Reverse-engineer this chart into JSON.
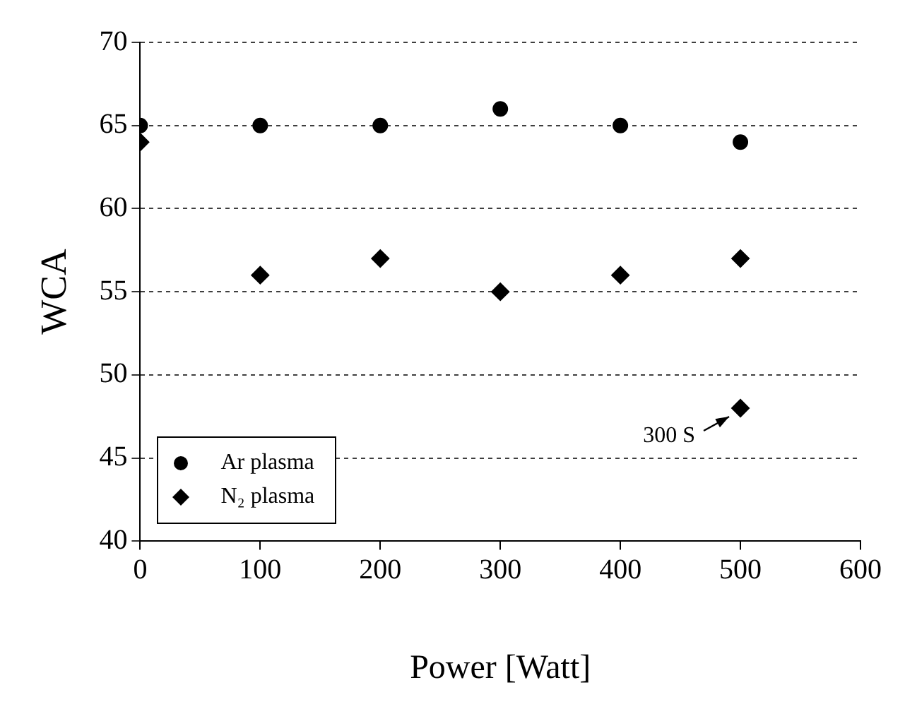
{
  "chart_data": {
    "type": "scatter",
    "xlabel": "Power [Watt]",
    "ylabel": "WCA",
    "xlim": [
      0,
      600
    ],
    "xticks": [
      0,
      100,
      200,
      300,
      400,
      500,
      600
    ],
    "ylim": [
      40,
      70
    ],
    "yticks": [
      40,
      45,
      50,
      55,
      60,
      65,
      70
    ],
    "grid": "y",
    "legend": "bottom left",
    "series": [
      {
        "name": "Ar plasma",
        "color": "#000000",
        "marker": "circle",
        "x": [
          0,
          100,
          200,
          300,
          400,
          500
        ],
        "values": [
          65,
          65,
          65,
          66,
          65,
          64
        ]
      },
      {
        "name": "N₂ plasma",
        "color": "#000000",
        "marker": "diamond",
        "x": [
          0,
          100,
          200,
          300,
          400,
          500,
          500
        ],
        "values": [
          64,
          56,
          57,
          55,
          56,
          57,
          48
        ]
      }
    ],
    "annotations": [
      {
        "text": "300 S",
        "x": 500,
        "y": 48
      }
    ]
  }
}
